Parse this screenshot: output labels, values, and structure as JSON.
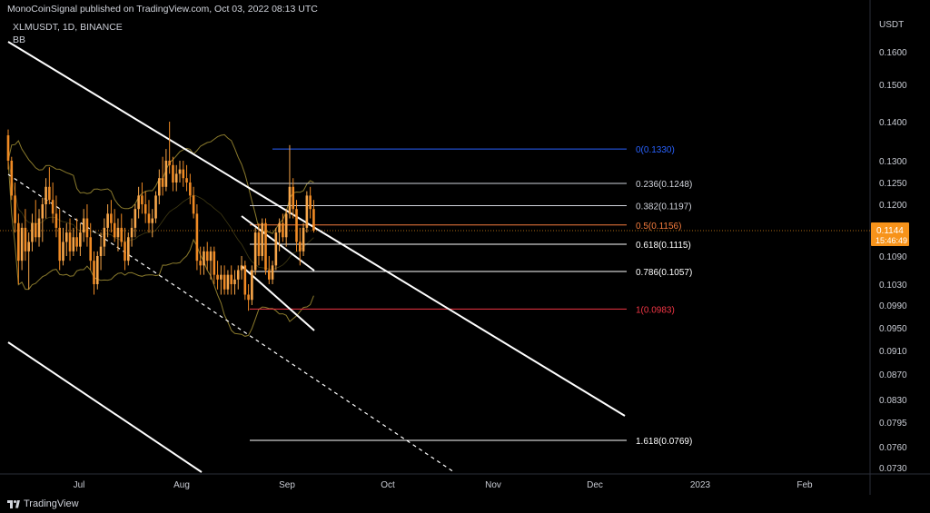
{
  "header": {
    "published": "MonoCoinSignal published on TradingView.com, Oct 03, 2022 08:13 UTC",
    "symbol": "XLMUSDT, 1D, BINANCE",
    "indicator": "BB"
  },
  "footer": {
    "logo_text": "TradingView"
  },
  "chart_data": {
    "type": "candlestick",
    "symbol": "XLMUSDT",
    "interval": "1D",
    "exchange": "BINANCE",
    "indicator": "BB",
    "currency_label": "USDT",
    "y_ticks": [
      0.16,
      0.15,
      0.14,
      0.13,
      0.125,
      0.12,
      0.109,
      0.103,
      0.099,
      0.095,
      0.091,
      0.087,
      0.083,
      0.0795,
      0.076,
      0.073
    ],
    "y_tick_labels": [
      "0.1600",
      "0.1500",
      "0.1400",
      "0.1300",
      "0.1250",
      "0.1200",
      "0.1090",
      "0.1030",
      "0.0990",
      "0.0950",
      "0.0910",
      "0.0870",
      "0.0830",
      "0.0795",
      "0.0760",
      "0.0730"
    ],
    "x_labels": [
      "Jul",
      "Aug",
      "Sep",
      "Oct",
      "Nov",
      "Dec",
      "2023",
      "Feb"
    ],
    "x_start_date": "2022-06-01",
    "last_price": {
      "price": "0.1144",
      "countdown": "15:46:49"
    },
    "fibonacci": [
      {
        "label": "0(0.1330)",
        "price": 0.133,
        "color": "#2962ff"
      },
      {
        "label": "0.236(0.1248)",
        "price": 0.1248,
        "color": "#d1d4dc"
      },
      {
        "label": "0.382(0.1197)",
        "price": 0.1197,
        "color": "#d1d4dc"
      },
      {
        "label": "0.5(0.1156)",
        "price": 0.1156,
        "color": "#f57c3d"
      },
      {
        "label": "0.618(0.1115)",
        "price": 0.1115,
        "color": "#ffffff"
      },
      {
        "label": "0.786(0.1057)",
        "price": 0.1057,
        "color": "#ffffff"
      },
      {
        "label": "1(0.0983)",
        "price": 0.0983,
        "color": "#f23645"
      },
      {
        "label": "1.618(0.0769)",
        "price": 0.0769,
        "color": "#ffffff"
      }
    ],
    "candles": [
      {
        "o": 0.1365,
        "h": 0.138,
        "l": 0.128,
        "c": 0.13
      },
      {
        "o": 0.13,
        "h": 0.131,
        "l": 0.121,
        "c": 0.122
      },
      {
        "o": 0.122,
        "h": 0.125,
        "l": 0.114,
        "c": 0.116
      },
      {
        "o": 0.116,
        "h": 0.118,
        "l": 0.103,
        "c": 0.108
      },
      {
        "o": 0.108,
        "h": 0.116,
        "l": 0.106,
        "c": 0.115
      },
      {
        "o": 0.115,
        "h": 0.119,
        "l": 0.108,
        "c": 0.11
      },
      {
        "o": 0.11,
        "h": 0.114,
        "l": 0.102,
        "c": 0.112
      },
      {
        "o": 0.112,
        "h": 0.118,
        "l": 0.11,
        "c": 0.116
      },
      {
        "o": 0.116,
        "h": 0.121,
        "l": 0.112,
        "c": 0.113
      },
      {
        "o": 0.113,
        "h": 0.119,
        "l": 0.111,
        "c": 0.117
      },
      {
        "o": 0.117,
        "h": 0.1215,
        "l": 0.112,
        "c": 0.12
      },
      {
        "o": 0.12,
        "h": 0.126,
        "l": 0.117,
        "c": 0.124
      },
      {
        "o": 0.124,
        "h": 0.1285,
        "l": 0.12,
        "c": 0.121
      },
      {
        "o": 0.121,
        "h": 0.125,
        "l": 0.116,
        "c": 0.118
      },
      {
        "o": 0.118,
        "h": 0.122,
        "l": 0.113,
        "c": 0.115
      },
      {
        "o": 0.115,
        "h": 0.119,
        "l": 0.106,
        "c": 0.108
      },
      {
        "o": 0.108,
        "h": 0.115,
        "l": 0.107,
        "c": 0.112
      },
      {
        "o": 0.112,
        "h": 0.116,
        "l": 0.109,
        "c": 0.114
      },
      {
        "o": 0.114,
        "h": 0.117,
        "l": 0.108,
        "c": 0.11
      },
      {
        "o": 0.11,
        "h": 0.115,
        "l": 0.109,
        "c": 0.113
      },
      {
        "o": 0.113,
        "h": 0.117,
        "l": 0.11,
        "c": 0.111
      },
      {
        "o": 0.111,
        "h": 0.116,
        "l": 0.109,
        "c": 0.114
      },
      {
        "o": 0.114,
        "h": 0.119,
        "l": 0.112,
        "c": 0.117
      },
      {
        "o": 0.117,
        "h": 0.12,
        "l": 0.111,
        "c": 0.113
      },
      {
        "o": 0.113,
        "h": 0.116,
        "l": 0.106,
        "c": 0.108
      },
      {
        "o": 0.108,
        "h": 0.11,
        "l": 0.101,
        "c": 0.103
      },
      {
        "o": 0.103,
        "h": 0.11,
        "l": 0.102,
        "c": 0.109
      },
      {
        "o": 0.109,
        "h": 0.114,
        "l": 0.106,
        "c": 0.111
      },
      {
        "o": 0.111,
        "h": 0.117,
        "l": 0.109,
        "c": 0.115
      },
      {
        "o": 0.115,
        "h": 0.12,
        "l": 0.113,
        "c": 0.118
      },
      {
        "o": 0.118,
        "h": 0.121,
        "l": 0.114,
        "c": 0.116
      },
      {
        "o": 0.116,
        "h": 0.119,
        "l": 0.112,
        "c": 0.113
      },
      {
        "o": 0.113,
        "h": 0.117,
        "l": 0.11,
        "c": 0.115
      },
      {
        "o": 0.115,
        "h": 0.118,
        "l": 0.111,
        "c": 0.112
      },
      {
        "o": 0.112,
        "h": 0.115,
        "l": 0.106,
        "c": 0.108
      },
      {
        "o": 0.108,
        "h": 0.114,
        "l": 0.107,
        "c": 0.113
      },
      {
        "o": 0.113,
        "h": 0.117,
        "l": 0.111,
        "c": 0.115
      },
      {
        "o": 0.115,
        "h": 0.12,
        "l": 0.113,
        "c": 0.119
      },
      {
        "o": 0.119,
        "h": 0.124,
        "l": 0.117,
        "c": 0.122
      },
      {
        "o": 0.122,
        "h": 0.125,
        "l": 0.118,
        "c": 0.12
      },
      {
        "o": 0.12,
        "h": 0.123,
        "l": 0.116,
        "c": 0.118
      },
      {
        "o": 0.118,
        "h": 0.121,
        "l": 0.114,
        "c": 0.116
      },
      {
        "o": 0.116,
        "h": 0.119,
        "l": 0.113,
        "c": 0.117
      },
      {
        "o": 0.117,
        "h": 0.123,
        "l": 0.116,
        "c": 0.122
      },
      {
        "o": 0.122,
        "h": 0.128,
        "l": 0.12,
        "c": 0.126
      },
      {
        "o": 0.126,
        "h": 0.131,
        "l": 0.122,
        "c": 0.124
      },
      {
        "o": 0.124,
        "h": 0.133,
        "l": 0.123,
        "c": 0.13
      },
      {
        "o": 0.13,
        "h": 0.14,
        "l": 0.127,
        "c": 0.129
      },
      {
        "o": 0.129,
        "h": 0.131,
        "l": 0.123,
        "c": 0.125
      },
      {
        "o": 0.125,
        "h": 0.129,
        "l": 0.123,
        "c": 0.127
      },
      {
        "o": 0.127,
        "h": 0.13,
        "l": 0.125,
        "c": 0.128
      },
      {
        "o": 0.128,
        "h": 0.13,
        "l": 0.124,
        "c": 0.126
      },
      {
        "o": 0.126,
        "h": 0.129,
        "l": 0.123,
        "c": 0.125
      },
      {
        "o": 0.125,
        "h": 0.127,
        "l": 0.12,
        "c": 0.122
      },
      {
        "o": 0.122,
        "h": 0.124,
        "l": 0.117,
        "c": 0.118
      },
      {
        "o": 0.118,
        "h": 0.12,
        "l": 0.106,
        "c": 0.108
      },
      {
        "o": 0.108,
        "h": 0.111,
        "l": 0.105,
        "c": 0.107
      },
      {
        "o": 0.107,
        "h": 0.111,
        "l": 0.105,
        "c": 0.11
      },
      {
        "o": 0.11,
        "h": 0.112,
        "l": 0.106,
        "c": 0.108
      },
      {
        "o": 0.108,
        "h": 0.111,
        "l": 0.104,
        "c": 0.11
      },
      {
        "o": 0.11,
        "h": 0.111,
        "l": 0.103,
        "c": 0.105
      },
      {
        "o": 0.105,
        "h": 0.108,
        "l": 0.102,
        "c": 0.104
      },
      {
        "o": 0.104,
        "h": 0.107,
        "l": 0.101,
        "c": 0.105
      },
      {
        "o": 0.105,
        "h": 0.107,
        "l": 0.101,
        "c": 0.102
      },
      {
        "o": 0.102,
        "h": 0.106,
        "l": 0.101,
        "c": 0.105
      },
      {
        "o": 0.105,
        "h": 0.107,
        "l": 0.101,
        "c": 0.103
      },
      {
        "o": 0.103,
        "h": 0.106,
        "l": 0.101,
        "c": 0.104
      },
      {
        "o": 0.104,
        "h": 0.107,
        "l": 0.102,
        "c": 0.106
      },
      {
        "o": 0.106,
        "h": 0.109,
        "l": 0.104,
        "c": 0.107
      },
      {
        "o": 0.107,
        "h": 0.108,
        "l": 0.1,
        "c": 0.101
      },
      {
        "o": 0.101,
        "h": 0.103,
        "l": 0.098,
        "c": 0.1
      },
      {
        "o": 0.1,
        "h": 0.107,
        "l": 0.099,
        "c": 0.106
      },
      {
        "o": 0.106,
        "h": 0.115,
        "l": 0.105,
        "c": 0.114
      },
      {
        "o": 0.114,
        "h": 0.116,
        "l": 0.107,
        "c": 0.109
      },
      {
        "o": 0.109,
        "h": 0.117,
        "l": 0.108,
        "c": 0.116
      },
      {
        "o": 0.116,
        "h": 0.117,
        "l": 0.105,
        "c": 0.106
      },
      {
        "o": 0.106,
        "h": 0.109,
        "l": 0.103,
        "c": 0.104
      },
      {
        "o": 0.104,
        "h": 0.108,
        "l": 0.103,
        "c": 0.107
      },
      {
        "o": 0.107,
        "h": 0.115,
        "l": 0.106,
        "c": 0.114
      },
      {
        "o": 0.114,
        "h": 0.117,
        "l": 0.11,
        "c": 0.116
      },
      {
        "o": 0.116,
        "h": 0.118,
        "l": 0.112,
        "c": 0.113
      },
      {
        "o": 0.113,
        "h": 0.119,
        "l": 0.111,
        "c": 0.118
      },
      {
        "o": 0.118,
        "h": 0.134,
        "l": 0.117,
        "c": 0.124
      },
      {
        "o": 0.124,
        "h": 0.126,
        "l": 0.117,
        "c": 0.119
      },
      {
        "o": 0.119,
        "h": 0.121,
        "l": 0.11,
        "c": 0.112
      },
      {
        "o": 0.112,
        "h": 0.115,
        "l": 0.107,
        "c": 0.11
      },
      {
        "o": 0.11,
        "h": 0.116,
        "l": 0.109,
        "c": 0.115
      },
      {
        "o": 0.115,
        "h": 0.123,
        "l": 0.114,
        "c": 0.122
      },
      {
        "o": 0.122,
        "h": 0.124,
        "l": 0.117,
        "c": 0.119
      },
      {
        "o": 0.119,
        "h": 0.121,
        "l": 0.114,
        "c": 0.1144
      }
    ]
  }
}
